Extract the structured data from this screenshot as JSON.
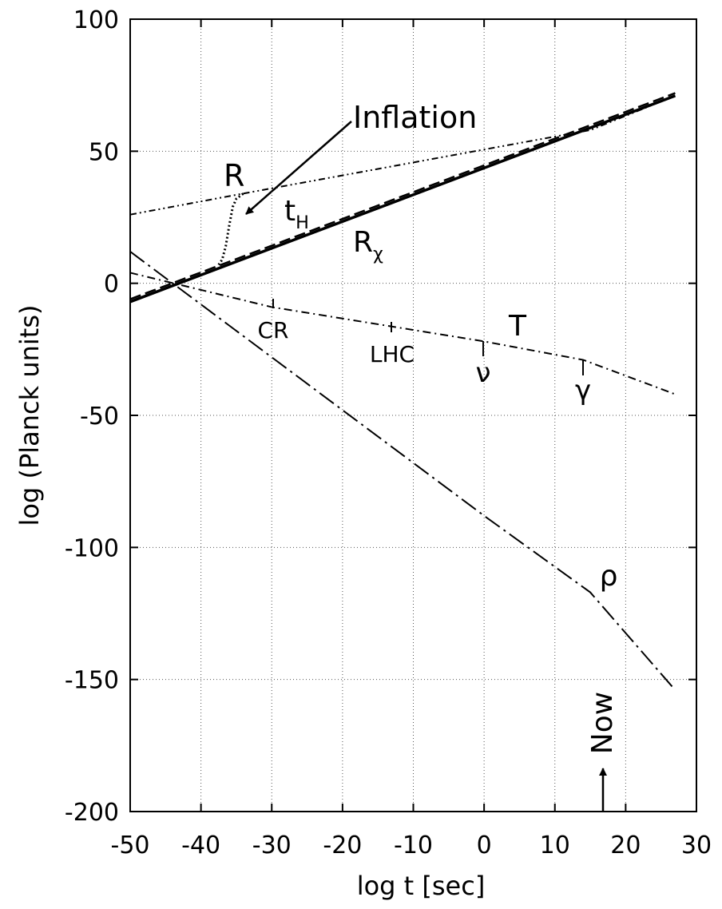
{
  "chart_data": {
    "type": "line",
    "xlabel": "log t   [sec]",
    "ylabel": "log (Planck units)",
    "xlim": [
      -50,
      30
    ],
    "ylim": [
      -200,
      100
    ],
    "xticks": [
      -50,
      -40,
      -30,
      -20,
      -10,
      0,
      10,
      20,
      30
    ],
    "yticks": [
      -200,
      -150,
      -100,
      -50,
      0,
      50,
      100
    ],
    "grid": true,
    "series": [
      {
        "color": "#000000",
        "style": "solid",
        "x": [
          -50,
          27
        ],
        "values": [
          -7,
          71
        ]
      },
      {
        "color": "#000000",
        "style": "dashed",
        "x": [
          -50,
          27
        ],
        "values": [
          -6,
          72
        ]
      },
      {
        "color": "#000000",
        "style": "dashdotdot",
        "x": [
          -50,
          -34,
          15,
          27
        ],
        "values": [
          26,
          34,
          58,
          71
        ]
      },
      {
        "color": "#000000",
        "style": "dotted",
        "x": [
          -37.5,
          -37,
          -36.5,
          -36,
          -35.5,
          -35,
          -34
        ],
        "values": [
          7,
          9,
          14,
          22,
          29,
          32,
          34
        ]
      },
      {
        "color": "#000000",
        "style": "dashdot",
        "x": [
          -50,
          -30,
          0,
          14,
          27
        ],
        "values": [
          4,
          -9,
          -22,
          -29,
          -42
        ]
      },
      {
        "color": "#000000",
        "style": "longdashdot",
        "x": [
          -50,
          0,
          15,
          27
        ],
        "values": [
          12,
          -88,
          -117,
          -154
        ]
      }
    ],
    "annotations": [
      {
        "text": "Inflation"
      },
      {
        "text": "R"
      },
      {
        "text": "t",
        "sub": "H"
      },
      {
        "text": "R",
        "sub": "χ"
      },
      {
        "text": "T"
      },
      {
        "text": "CR"
      },
      {
        "text": "LHC"
      },
      {
        "text": "ν"
      },
      {
        "text": "γ"
      },
      {
        "text": "ρ"
      },
      {
        "text": "Now"
      }
    ]
  }
}
